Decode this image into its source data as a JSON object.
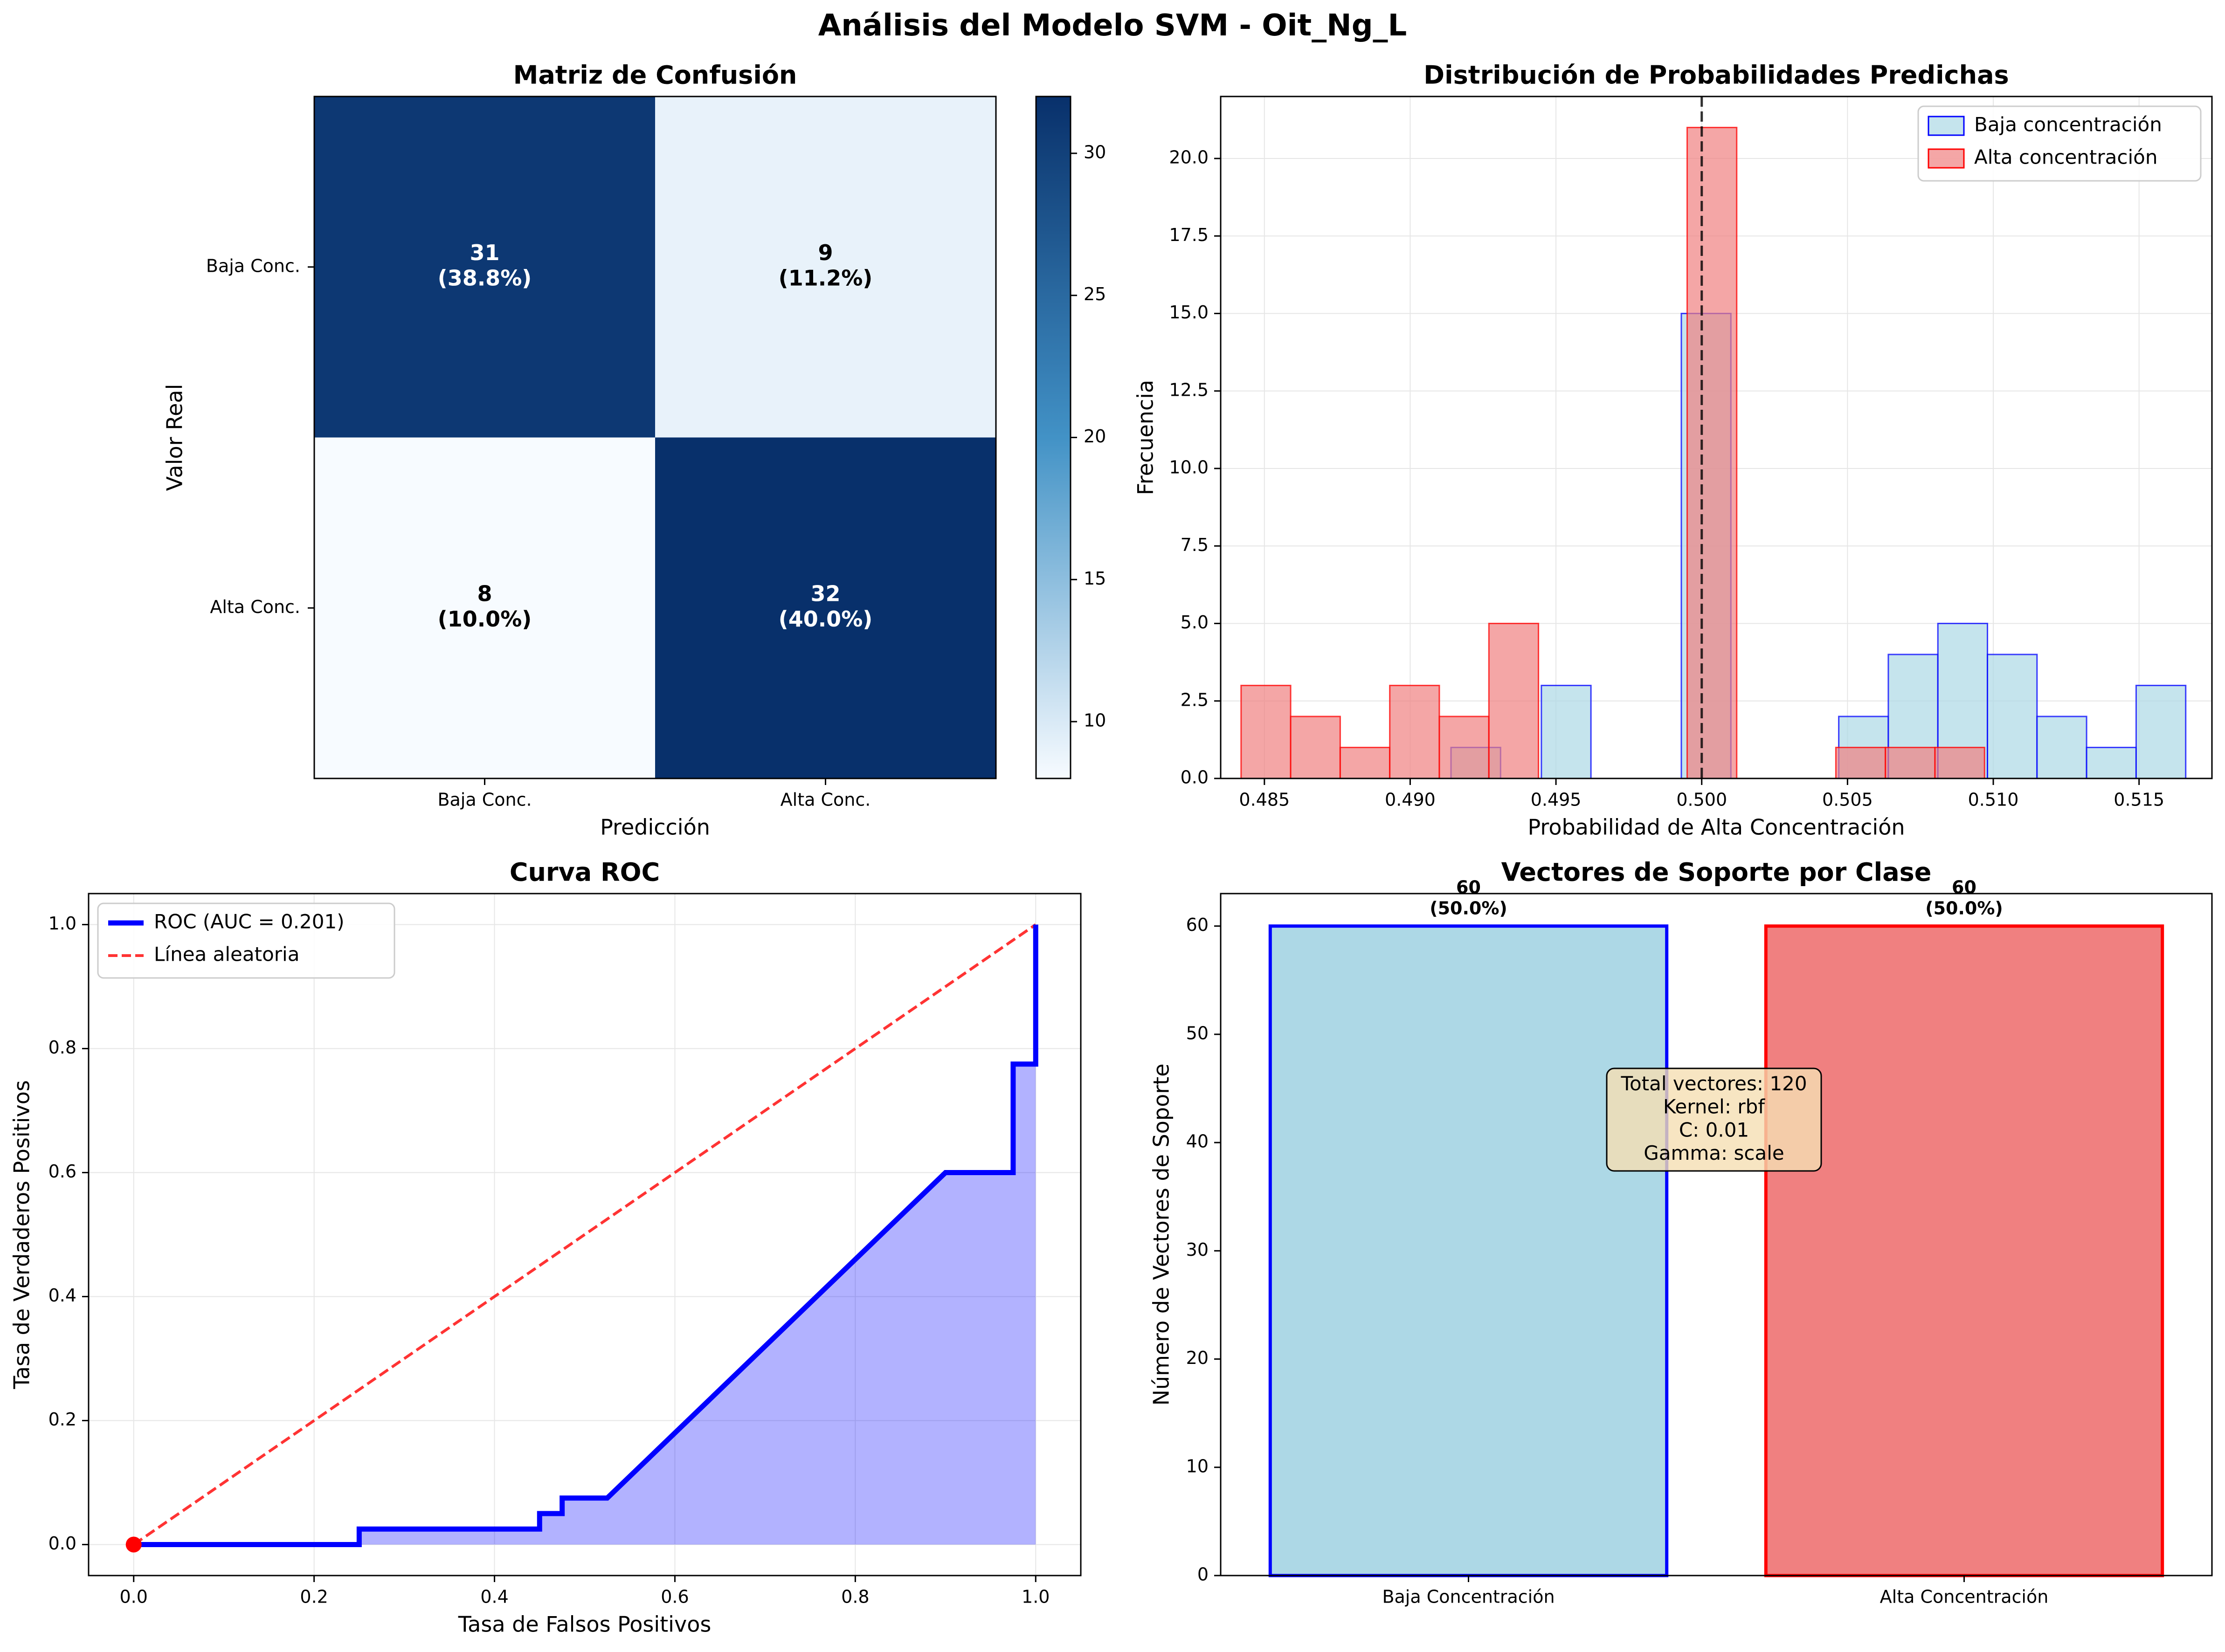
{
  "figure": {
    "title": "Análisis del Modelo SVM - Oit_Ng_L"
  },
  "chart_data": [
    {
      "type": "heatmap",
      "title": "Matriz de Confusión",
      "xlabel": "Predicción",
      "ylabel": "Valor Real",
      "x_categories": [
        "Baja Conc.",
        "Alta Conc."
      ],
      "y_categories": [
        "Baja Conc.",
        "Alta Conc."
      ],
      "values": [
        [
          31,
          9
        ],
        [
          8,
          32
        ]
      ],
      "cell_labels": [
        [
          "31\n(38.8%)",
          "9\n(11.2%)"
        ],
        [
          "8\n(10.0%)",
          "32\n(40.0%)"
        ]
      ],
      "colormap": "Blues",
      "colorbar": {
        "range": [
          8,
          32
        ],
        "ticks": [
          10,
          15,
          20,
          25,
          30
        ]
      }
    },
    {
      "type": "bar",
      "title": "Distribución de Probabilidades Predichas",
      "xlabel": "Probabilidad de Alta Concentración",
      "ylabel": "Frecuencia",
      "xlim": [
        0.4835,
        0.5175
      ],
      "ylim": [
        0,
        22
      ],
      "xticks": [
        "0.485",
        "0.490",
        "0.495",
        "0.500",
        "0.505",
        "0.510",
        "0.515"
      ],
      "yticks": [
        "0.0",
        "2.5",
        "5.0",
        "7.5",
        "10.0",
        "12.5",
        "15.0",
        "17.5",
        "20.0"
      ],
      "threshold": 0.5,
      "grid": true,
      "legend_position": "top-right",
      "series": [
        {
          "name": "Baja concentración",
          "color": "#add8e6",
          "edge": "#0000ff",
          "bins": [
            {
              "x0": 0.4914,
              "x1": 0.4931,
              "count": 1
            },
            {
              "x0": 0.4945,
              "x1": 0.4962,
              "count": 3
            },
            {
              "x0": 0.4993,
              "x1": 0.501,
              "count": 15
            },
            {
              "x0": 0.5047,
              "x1": 0.5064,
              "count": 2
            },
            {
              "x0": 0.5064,
              "x1": 0.5081,
              "count": 4
            },
            {
              "x0": 0.5081,
              "x1": 0.5098,
              "count": 5
            },
            {
              "x0": 0.5098,
              "x1": 0.5115,
              "count": 4
            },
            {
              "x0": 0.5115,
              "x1": 0.5132,
              "count": 2
            },
            {
              "x0": 0.5132,
              "x1": 0.5149,
              "count": 1
            },
            {
              "x0": 0.5149,
              "x1": 0.5166,
              "count": 3
            }
          ]
        },
        {
          "name": "Alta concentración",
          "color": "#f08080",
          "edge": "#ff0000",
          "bins": [
            {
              "x0": 0.4842,
              "x1": 0.4859,
              "count": 3
            },
            {
              "x0": 0.4859,
              "x1": 0.4876,
              "count": 2
            },
            {
              "x0": 0.4876,
              "x1": 0.4893,
              "count": 1
            },
            {
              "x0": 0.4893,
              "x1": 0.491,
              "count": 3
            },
            {
              "x0": 0.491,
              "x1": 0.4927,
              "count": 2
            },
            {
              "x0": 0.4927,
              "x1": 0.4944,
              "count": 5
            },
            {
              "x0": 0.4995,
              "x1": 0.5012,
              "count": 21
            },
            {
              "x0": 0.5046,
              "x1": 0.5063,
              "count": 1
            },
            {
              "x0": 0.5063,
              "x1": 0.508,
              "count": 1
            },
            {
              "x0": 0.508,
              "x1": 0.5097,
              "count": 1
            }
          ]
        }
      ]
    },
    {
      "type": "line",
      "title": "Curva ROC",
      "xlabel": "Tasa de Falsos Positivos",
      "ylabel": "Tasa de Verdaderos Positivos",
      "xlim": [
        -0.05,
        1.05
      ],
      "ylim": [
        -0.05,
        1.05
      ],
      "xticks": [
        "0.0",
        "0.2",
        "0.4",
        "0.6",
        "0.8",
        "1.0"
      ],
      "yticks": [
        "0.0",
        "0.2",
        "0.4",
        "0.6",
        "0.8",
        "1.0"
      ],
      "grid": true,
      "legend_position": "top-left",
      "series": [
        {
          "name": "ROC (AUC = 0.201)",
          "color": "#0000ff",
          "x": [
            0,
            0.25,
            0.25,
            0.45,
            0.45,
            0.475,
            0.475,
            0.525,
            0.9,
            0.975,
            0.975,
            1.0,
            1.0
          ],
          "y": [
            0,
            0,
            0.025,
            0.025,
            0.05,
            0.05,
            0.075,
            0.075,
            0.6,
            0.6,
            0.775,
            0.775,
            1.0
          ]
        },
        {
          "name": "Línea aleatoria",
          "color": "#ff0000",
          "x": [
            0,
            1
          ],
          "y": [
            0,
            1
          ]
        }
      ],
      "marker": {
        "x": 0,
        "y": 0,
        "color": "#ff0000"
      },
      "fill_color": "#0000ff"
    },
    {
      "type": "bar",
      "title": "Vectores de Soporte por Clase",
      "ylabel": "Número de Vectores de Soporte",
      "categories": [
        "Baja Concentración",
        "Alta Concentración"
      ],
      "values": [
        60,
        60
      ],
      "bar_labels": [
        "60\n(50.0%)",
        "60\n(50.0%)"
      ],
      "colors": [
        "#add8e6",
        "#f08080"
      ],
      "edges": [
        "#0000ff",
        "#ff0000"
      ],
      "ylim": [
        0,
        63
      ],
      "yticks": [
        "0",
        "10",
        "20",
        "30",
        "40",
        "50",
        "60"
      ],
      "annotation": [
        "Total vectores: 120",
        "Kernel: rbf",
        "C: 0.01",
        "Gamma: scale"
      ]
    }
  ]
}
